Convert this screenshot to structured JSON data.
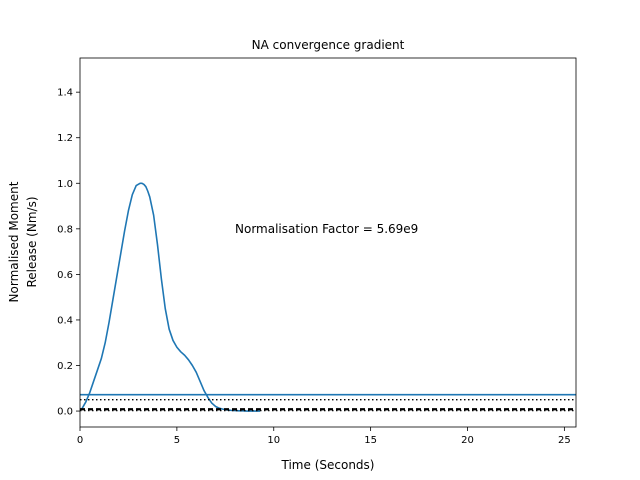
{
  "chart_data": {
    "type": "line",
    "title": "NA convergence gradient",
    "xlabel": "Time (Seconds)",
    "ylabel_lines": [
      "Normalised Moment",
      "Release (Nm/s)"
    ],
    "xlim": [
      0,
      25.6
    ],
    "ylim": [
      -0.07,
      1.55
    ],
    "xticks": [
      0,
      5,
      10,
      15,
      20,
      25
    ],
    "yticks": [
      0.0,
      0.2,
      0.4,
      0.6,
      0.8,
      1.0,
      1.2,
      1.4
    ],
    "xtick_labels": [
      "0",
      "5",
      "10",
      "15",
      "20",
      "25"
    ],
    "ytick_labels": [
      "0.0",
      "0.2",
      "0.4",
      "0.6",
      "0.8",
      "1.0",
      "1.2",
      "1.4"
    ],
    "grid": false,
    "annotation": {
      "text": "Normalisation Factor = 5.69e9",
      "x": 8.0,
      "y": 0.8
    },
    "colors": {
      "curve": "#1f77b4",
      "hline_solid": "#1f77b4",
      "hline_dotted": "#000000",
      "hline_dashed": "#000000"
    },
    "series": [
      {
        "style": "solid",
        "x": [
          0.1,
          0.3,
          0.5,
          0.7,
          0.9,
          1.1,
          1.3,
          1.5,
          1.7,
          1.9,
          2.1,
          2.3,
          2.5,
          2.7,
          2.9,
          3.1,
          3.2,
          3.3,
          3.4,
          3.5,
          3.6,
          3.8,
          4.0,
          4.2,
          4.4,
          4.6,
          4.8,
          5.0,
          5.2,
          5.4,
          5.6,
          5.8,
          6.0,
          6.2,
          6.4,
          6.6,
          6.8,
          7.0,
          7.2,
          7.4,
          7.6,
          7.8,
          8.0,
          8.2,
          8.4,
          8.6,
          8.8,
          9.0,
          9.3
        ],
        "y": [
          0.01,
          0.04,
          0.08,
          0.13,
          0.18,
          0.23,
          0.3,
          0.39,
          0.49,
          0.59,
          0.69,
          0.79,
          0.88,
          0.95,
          0.99,
          1.0,
          1.0,
          0.995,
          0.985,
          0.965,
          0.94,
          0.86,
          0.73,
          0.58,
          0.45,
          0.36,
          0.31,
          0.28,
          0.26,
          0.245,
          0.225,
          0.2,
          0.17,
          0.13,
          0.09,
          0.06,
          0.035,
          0.02,
          0.012,
          0.008,
          0.005,
          0.003,
          0.002,
          0.001,
          0.001,
          0.0,
          0.0,
          0.0,
          0.0
        ]
      },
      {
        "style": "hline-solid",
        "y": 0.072
      },
      {
        "style": "hline-dotted",
        "y": 0.05
      },
      {
        "style": "hline-dashed",
        "y": 0.008
      },
      {
        "style": "hline-dotted",
        "y": 0.002
      }
    ]
  }
}
